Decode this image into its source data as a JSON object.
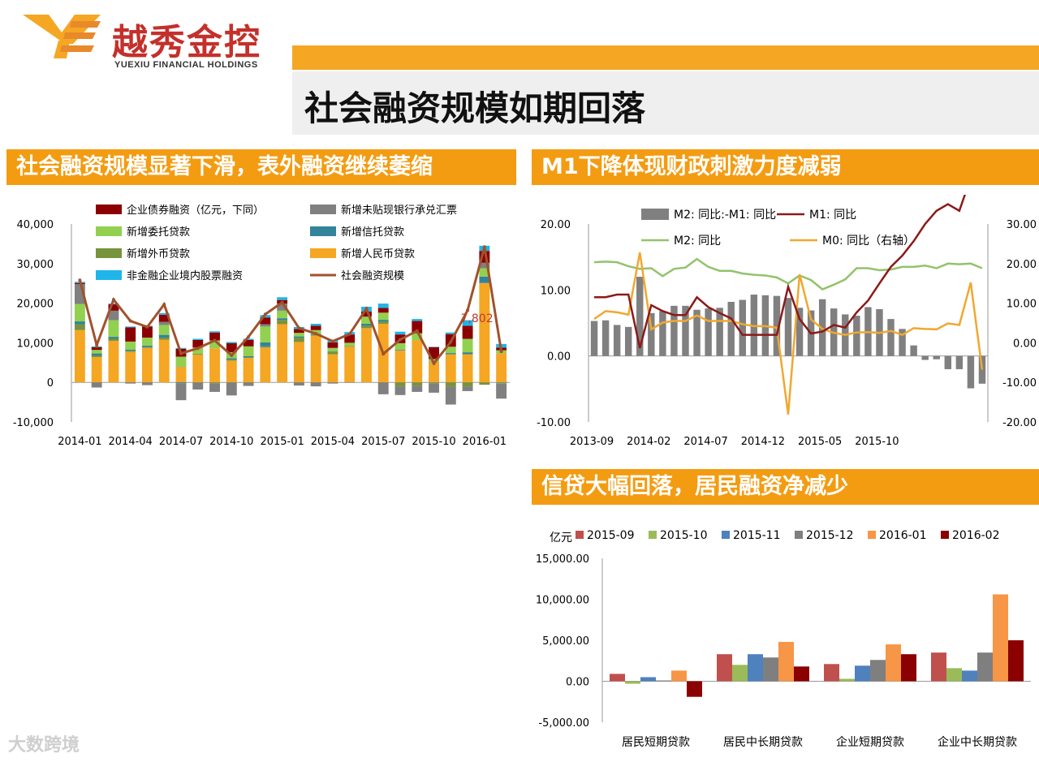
{
  "header": {
    "logo_cn": "越秀金控",
    "logo_en": "YUEXIU FINANCIAL HOLDINGS",
    "title": "社会融资规模如期回落",
    "accent": "#f39c12"
  },
  "sections": {
    "s1": "社会融资规模显著下滑，表外融资继续萎缩",
    "s2": "M1下降体现财政刺激力度减弱",
    "s3": "信贷大幅回落，居民融资净减少"
  },
  "watermark": "大数跨境",
  "chart_data": [
    {
      "type": "bar",
      "stacked": true,
      "ylim": [
        -10000,
        40000
      ],
      "yticks": [
        "40,000",
        "30,000",
        "20,000",
        "10,000",
        "0",
        "-10,000"
      ],
      "xticks": [
        "2014-01",
        "2014-04",
        "2014-07",
        "2014-10",
        "2015-01",
        "2015-04",
        "2015-07",
        "2015-10",
        "2016-01"
      ],
      "annotation": "7,802",
      "legend": [
        {
          "name": "企业债券融资（亿元，下同）",
          "color": "#8b0000"
        },
        {
          "name": "新增未贴现银行承兑汇票",
          "color": "#808080"
        },
        {
          "name": "新增委托贷款",
          "color": "#92d050"
        },
        {
          "name": "新增信托贷款",
          "color": "#31849b"
        },
        {
          "name": "新增外币贷款",
          "color": "#77933c"
        },
        {
          "name": "新增人民币贷款",
          "color": "#f5a623"
        },
        {
          "name": "非金融企业境内股票融资",
          "color": "#1fb5e8"
        },
        {
          "name": "社会融资规模",
          "color": "#a0522d"
        }
      ],
      "series": [
        {
          "name": "新增人民币贷款",
          "values": [
            13200,
            6400,
            10500,
            7700,
            8700,
            10800,
            3900,
            7000,
            8600,
            5500,
            6200,
            8800,
            14700,
            10200,
            11800,
            7100,
            9000,
            13700,
            14800,
            8100,
            10600,
            5100,
            7100,
            7100,
            25100,
            7300
          ]
        },
        {
          "name": "新增外币贷款",
          "values": [
            1500,
            400,
            500,
            300,
            200,
            500,
            100,
            200,
            -200,
            300,
            100,
            300,
            1100,
            1100,
            400,
            700,
            200,
            600,
            600,
            -1000,
            -800,
            -200,
            -1100,
            -1000,
            -600,
            -200
          ]
        },
        {
          "name": "新增信托贷款",
          "values": [
            700,
            500,
            500,
            300,
            400,
            700,
            -200,
            0,
            0,
            300,
            300,
            1000,
            400,
            300,
            100,
            100,
            0,
            500,
            400,
            200,
            0,
            100,
            300,
            500,
            1600,
            -100
          ]
        },
        {
          "name": "新增委托贷款",
          "values": [
            4400,
            900,
            4200,
            2000,
            2000,
            2500,
            2500,
            1600,
            2000,
            1500,
            2500,
            4000,
            1900,
            900,
            900,
            800,
            800,
            1800,
            1800,
            1600,
            1800,
            700,
            1600,
            3400,
            2100,
            800
          ]
        },
        {
          "name": "新增未贴现银行承兑汇票",
          "values": [
            5000,
            -1300,
            2400,
            -300,
            -700,
            800,
            -4300,
            -1800,
            -2200,
            -3300,
            -900,
            600,
            1800,
            -800,
            -1000,
            -300,
            -100,
            0,
            -3000,
            -2200,
            -1600,
            -2400,
            -4500,
            -1200,
            1400,
            -3800
          ]
        },
        {
          "name": "企业债券融资",
          "values": [
            300,
            700,
            1600,
            3600,
            2800,
            1800,
            2000,
            1900,
            2000,
            2300,
            1600,
            1700,
            900,
            1000,
            1100,
            1400,
            2100,
            1300,
            1200,
            2200,
            3100,
            3000,
            3200,
            3300,
            3000,
            700
          ]
        },
        {
          "name": "非金融企业境内股票融资",
          "values": [
            300,
            200,
            200,
            200,
            200,
            400,
            200,
            300,
            300,
            300,
            300,
            600,
            700,
            500,
            500,
            500,
            600,
            1200,
            1100,
            700,
            500,
            100,
            400,
            1400,
            1300,
            900
          ]
        }
      ],
      "total": {
        "name": "社会融资规模",
        "values": [
          25800,
          9400,
          20900,
          15500,
          14000,
          19700,
          7300,
          8600,
          10600,
          6800,
          11500,
          17200,
          20200,
          13700,
          12300,
          10400,
          12200,
          18600,
          7200,
          10800,
          13000,
          4800,
          10200,
          18200,
          34200,
          7802
        ]
      }
    },
    {
      "type": "line",
      "left_axis": {
        "min": -10,
        "max": 20,
        "ticks": [
          "20.00",
          "10.00",
          "0.00",
          "-10.00"
        ]
      },
      "right_axis": {
        "min": -20,
        "max": 30,
        "ticks": [
          "30.00",
          "20.00",
          "10.00",
          "0.00",
          "-10.00",
          "-20.00"
        ]
      },
      "xticks": [
        "2013-09",
        "2014-02",
        "2014-07",
        "2014-12",
        "2015-05",
        "2015-10"
      ],
      "legend": [
        {
          "name": "M2: 同比:-M1: 同比",
          "color": "#808080"
        },
        {
          "name": "M1: 同比",
          "color": "#8b1a1a"
        },
        {
          "name": "M2: 同比",
          "color": "#92c36b"
        },
        {
          "name": "M0: 同比（右轴）",
          "color": "#f0a830"
        }
      ],
      "series": [
        {
          "name": "M2: 同比:-M1: 同比",
          "axis": "left",
          "values": [
            5.3,
            5.4,
            4.7,
            4.4,
            12.0,
            6.5,
            6.8,
            7.6,
            7.6,
            7.0,
            7.2,
            7.3,
            8.2,
            8.5,
            9.3,
            9.2,
            9.1,
            8.8,
            7.3,
            6.9,
            8.6,
            7.2,
            6.3,
            6.1,
            7.4,
            7.1,
            5.6,
            4.1,
            1.6,
            -0.6,
            -0.5,
            -2.0,
            -2.0,
            -4.9,
            -4.2
          ]
        },
        {
          "name": "M1: 同比",
          "axis": "left",
          "values": [
            8.9,
            8.9,
            9.3,
            9.3,
            1.2,
            7.7,
            6.8,
            6.2,
            6.2,
            8.9,
            7.4,
            6.5,
            5.7,
            3.2,
            3.2,
            3.2,
            3.2,
            10.5,
            5.6,
            3.4,
            3.7,
            4.7,
            4.3,
            6.6,
            8.4,
            11.0,
            13.5,
            15.2,
            17.4,
            20.0,
            22.0,
            23.0,
            22.0,
            27.0,
            25.0
          ]
        },
        {
          "name": "M2: 同比",
          "axis": "left",
          "values": [
            14.2,
            14.3,
            14.2,
            13.6,
            13.2,
            13.3,
            12.1,
            13.2,
            13.4,
            14.7,
            13.5,
            12.9,
            12.9,
            12.5,
            12.3,
            12.2,
            11.9,
            11.0,
            12.2,
            11.5,
            10.1,
            10.8,
            11.6,
            13.3,
            13.3,
            13.0,
            13.1,
            13.5,
            13.5,
            13.7,
            13.3,
            14.0,
            13.9,
            14.0,
            13.3
          ]
        },
        {
          "name": "M0: 同比（右轴）",
          "axis": "right",
          "values": [
            6.0,
            8.0,
            7.7,
            7.1,
            22.8,
            3.4,
            5.1,
            5.5,
            5.5,
            6.9,
            5.5,
            5.5,
            5.5,
            4.7,
            4.2,
            4.2,
            3.8,
            -18.1,
            17.3,
            5.9,
            3.5,
            2.5,
            2.0,
            2.6,
            2.7,
            2.5,
            3.0,
            2.0,
            3.7,
            3.5,
            3.4,
            4.9,
            4.5,
            15.2,
            -6.8
          ]
        }
      ]
    },
    {
      "type": "bar",
      "unit": "亿元",
      "ylim": [
        -5000,
        15000
      ],
      "yticks": [
        "15,000.00",
        "10,000.00",
        "5,000.00",
        "0.00",
        "-5,000.00"
      ],
      "categories": [
        "居民短期贷款",
        "居民中长期贷款",
        "企业短期贷款",
        "企业中长期贷款"
      ],
      "series": [
        {
          "name": "2015-09",
          "color": "#c0504d",
          "values": [
            900,
            3300,
            2100,
            3500
          ]
        },
        {
          "name": "2015-10",
          "color": "#9bbb59",
          "values": [
            -300,
            2000,
            300,
            1600
          ]
        },
        {
          "name": "2015-11",
          "color": "#4f81bd",
          "values": [
            500,
            3300,
            1900,
            1300
          ]
        },
        {
          "name": "2015-12",
          "color": "#7f7f7f",
          "values": [
            100,
            2900,
            2600,
            3500
          ]
        },
        {
          "name": "2016-01",
          "color": "#f79646",
          "values": [
            1300,
            4800,
            4500,
            10600
          ]
        },
        {
          "name": "2016-02",
          "color": "#8b0000",
          "values": [
            -1900,
            1800,
            3300,
            5000
          ]
        }
      ]
    }
  ]
}
